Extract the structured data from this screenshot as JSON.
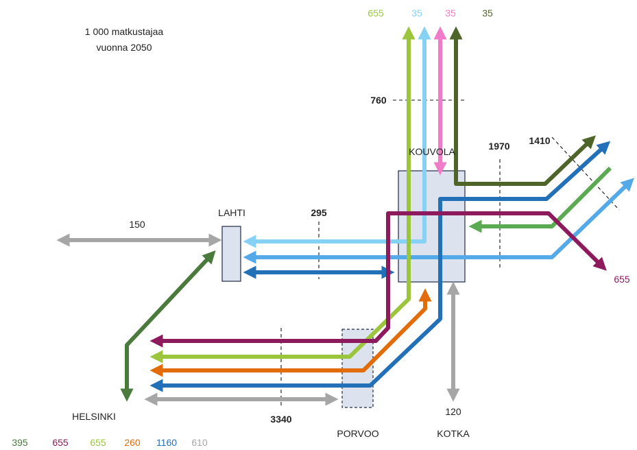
{
  "title": {
    "line1": "1 000 matkustajaa",
    "line2": "vuonna 2050"
  },
  "colors": {
    "dark_green": "#4a7a3c",
    "olive": "#4e6428",
    "purple": "#8c1a5c",
    "light_green": "#9bc53d",
    "orange": "#e36c0a",
    "dark_blue": "#2270b8",
    "light_blue": "#54a9e8",
    "sky_blue": "#85d2f5",
    "pink": "#f07cc9",
    "mid_green": "#5aaa52",
    "gray": "#a6a6a6"
  },
  "stations": {
    "lahti": "LAHTI",
    "kouvola": "KOUVOLA",
    "porvoo": "PORVOO",
    "helsinki": "HELSINKI",
    "kotka": "KOTKA"
  },
  "top_values": [
    {
      "value": "655",
      "color": "#9bc53d"
    },
    {
      "value": "35",
      "color": "#85d2f5"
    },
    {
      "value": "35",
      "color": "#f07cc9"
    },
    {
      "value": "35",
      "color": "#4e6428"
    }
  ],
  "bottom_values": [
    {
      "value": "395",
      "color": "#4a7a3c"
    },
    {
      "value": "655",
      "color": "#8c1a5c"
    },
    {
      "value": "655",
      "color": "#9bc53d"
    },
    {
      "value": "260",
      "color": "#e36c0a"
    },
    {
      "value": "1160",
      "color": "#2270b8"
    },
    {
      "value": "610",
      "color": "#a6a6a6"
    }
  ],
  "section_values": {
    "west_lahti": "150",
    "lahti_kouvola": "295",
    "north_kouvola": "760",
    "east_kouvola": "1970",
    "east_far": "1410",
    "helsinki_porvoo": "3340",
    "kotka": "120",
    "east_out": "655"
  }
}
